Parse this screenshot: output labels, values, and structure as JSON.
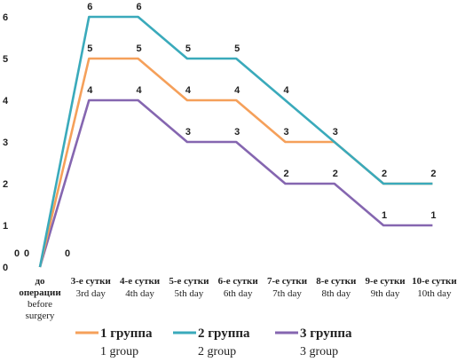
{
  "chart_data": {
    "type": "line",
    "ylim": [
      0,
      6
    ],
    "grid": false,
    "legend_position": "bottom",
    "yticks": [
      "0",
      "1",
      "2",
      "3",
      "4",
      "5",
      "6"
    ],
    "categories": [
      {
        "ru": [
          "до",
          "операции"
        ],
        "en": [
          "before",
          "surgery"
        ]
      },
      {
        "ru": [
          "3-е сутки"
        ],
        "en": [
          "3rd day"
        ]
      },
      {
        "ru": [
          "4-е сутки"
        ],
        "en": [
          "4th day"
        ]
      },
      {
        "ru": [
          "5-е сутки"
        ],
        "en": [
          "5th day"
        ]
      },
      {
        "ru": [
          "6-е сутки"
        ],
        "en": [
          "6th day"
        ]
      },
      {
        "ru": [
          "7-е сутки"
        ],
        "en": [
          "7th day"
        ]
      },
      {
        "ru": [
          "8-е сутки"
        ],
        "en": [
          "8th day"
        ]
      },
      {
        "ru": [
          "9-е сутки"
        ],
        "en": [
          "9th day"
        ]
      },
      {
        "ru": [
          "10-е сутки"
        ],
        "en": [
          "10th day"
        ]
      }
    ],
    "series": [
      {
        "name": "1 группа",
        "name_en": "1 group",
        "color": "#f5a05a",
        "values": [
          0,
          5,
          5,
          4,
          4,
          3,
          3,
          2,
          2
        ]
      },
      {
        "name": "2 группа",
        "name_en": "2 group",
        "color": "#3aaabb",
        "values": [
          0,
          6,
          6,
          5,
          5,
          4,
          3,
          2,
          2
        ]
      },
      {
        "name": "3 группа",
        "name_en": "3 group",
        "color": "#8566b0",
        "values": [
          0,
          4,
          4,
          3,
          3,
          2,
          2,
          1,
          1
        ]
      }
    ],
    "label_series": [
      "2 группа",
      "1 группа",
      "3 группа"
    ]
  }
}
